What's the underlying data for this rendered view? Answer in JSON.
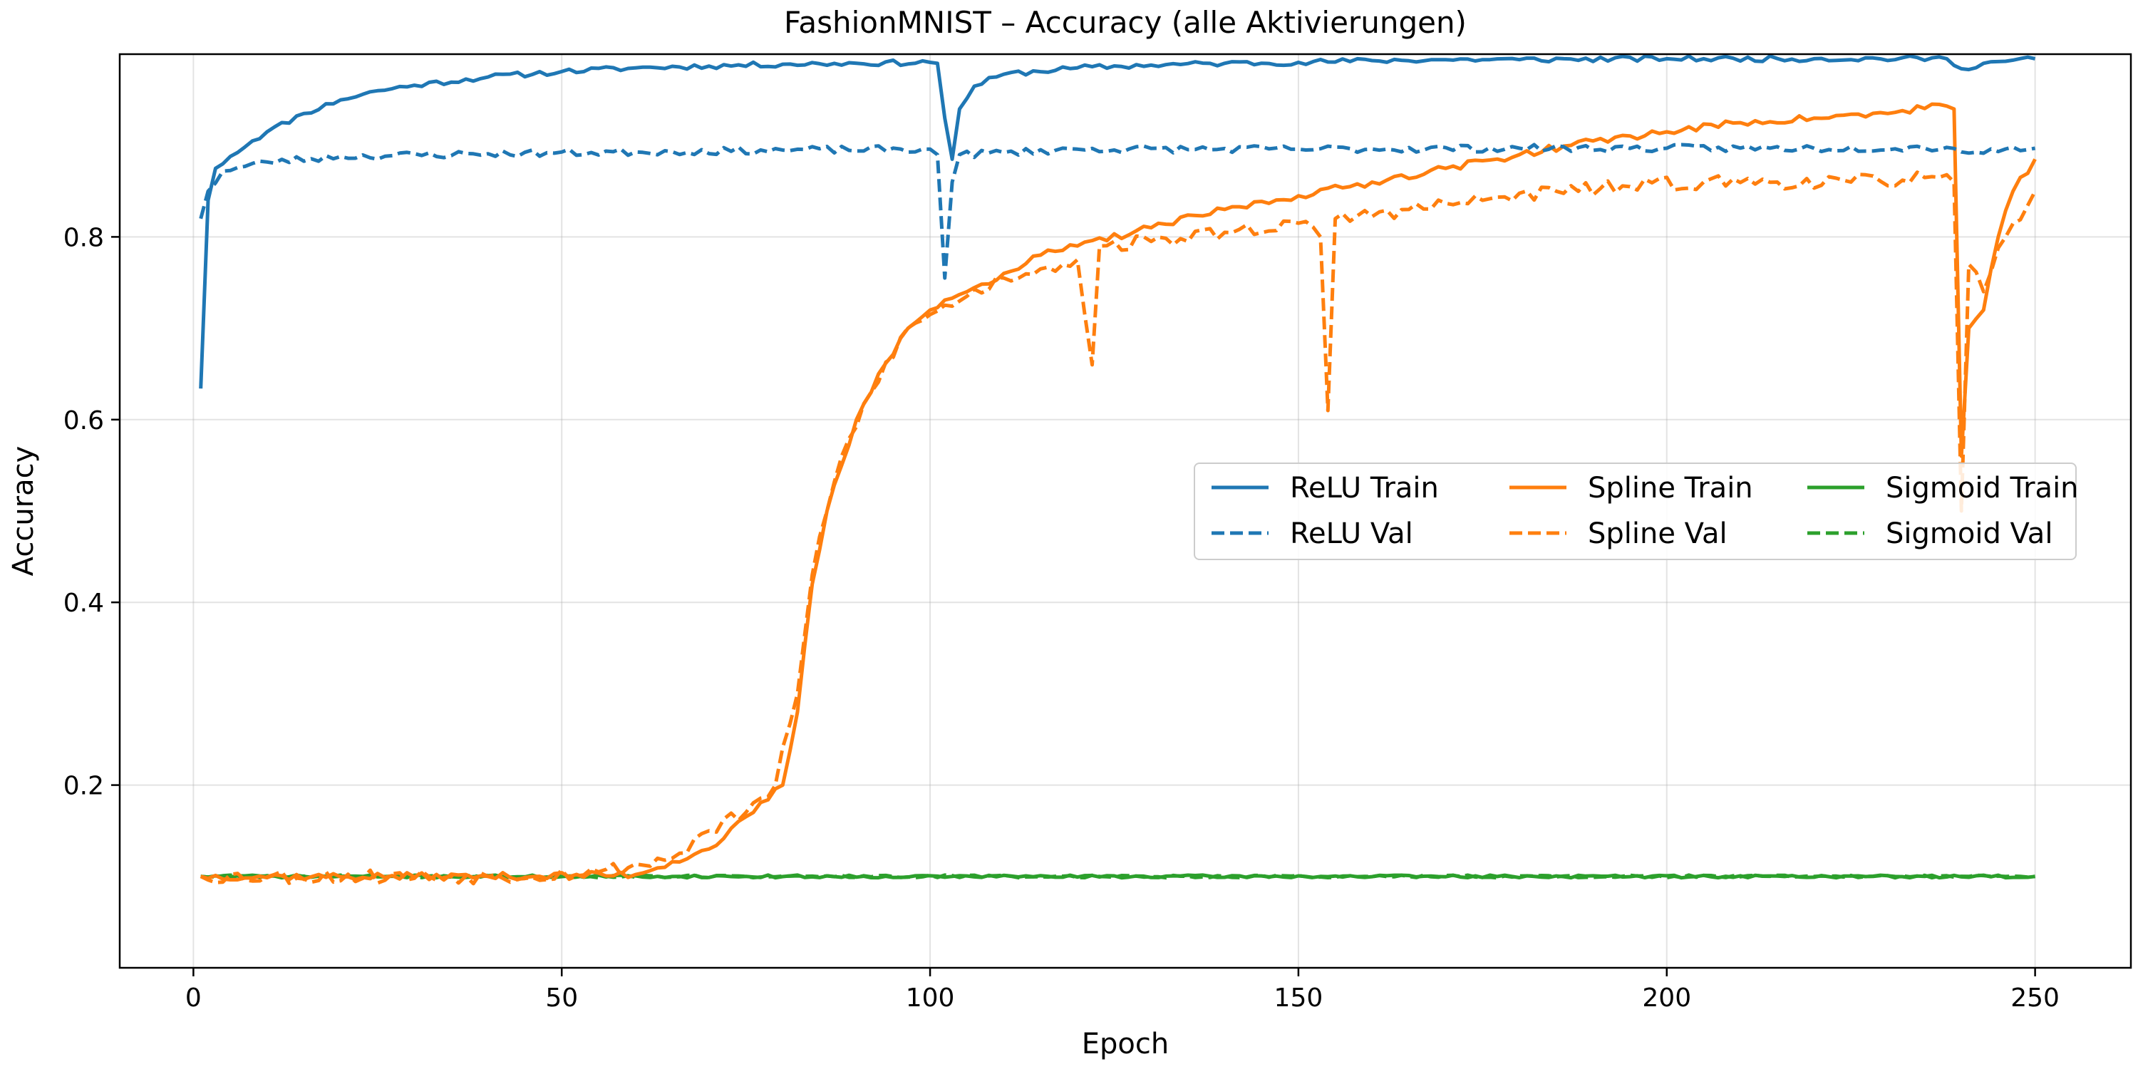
{
  "chart_data": {
    "type": "line",
    "title": "FashionMNIST – Accuracy (alle Aktivierungen)",
    "xlabel": "Epoch",
    "ylabel": "Accuracy",
    "xlim": [
      -10,
      263
    ],
    "ylim": [
      0.0,
      1.0
    ],
    "x_ticks": [
      0,
      50,
      100,
      150,
      200,
      250
    ],
    "y_ticks": [
      0.2,
      0.4,
      0.6,
      0.8
    ],
    "y_tick_labels": [
      "0.2",
      "0.4",
      "0.6",
      "0.8"
    ],
    "grid": true,
    "legend": {
      "placement": "center-right",
      "columns": 3
    },
    "series": [
      {
        "name": "ReLU Train",
        "color": "#1f77b4",
        "style": "solid",
        "keyframes": [
          [
            1,
            0.634
          ],
          [
            2,
            0.84
          ],
          [
            3,
            0.875
          ],
          [
            5,
            0.888
          ],
          [
            8,
            0.905
          ],
          [
            10,
            0.915
          ],
          [
            15,
            0.935
          ],
          [
            20,
            0.95
          ],
          [
            25,
            0.96
          ],
          [
            30,
            0.966
          ],
          [
            40,
            0.975
          ],
          [
            50,
            0.981
          ],
          [
            60,
            0.985
          ],
          [
            70,
            0.987
          ],
          [
            80,
            0.989
          ],
          [
            90,
            0.99
          ],
          [
            100,
            0.991
          ],
          [
            101,
            0.99
          ],
          [
            102,
            0.93
          ],
          [
            103,
            0.885
          ],
          [
            104,
            0.94
          ],
          [
            106,
            0.965
          ],
          [
            110,
            0.978
          ],
          [
            120,
            0.985
          ],
          [
            130,
            0.988
          ],
          [
            140,
            0.99
          ],
          [
            150,
            0.991
          ],
          [
            160,
            0.993
          ],
          [
            170,
            0.994
          ],
          [
            180,
            0.994
          ],
          [
            200,
            0.995
          ],
          [
            220,
            0.995
          ],
          [
            238,
            0.995
          ],
          [
            240,
            0.984
          ],
          [
            243,
            0.99
          ],
          [
            250,
            0.995
          ]
        ],
        "noise": 0.003,
        "seed": 11
      },
      {
        "name": "ReLU Val",
        "color": "#1f77b4",
        "style": "dashed",
        "keyframes": [
          [
            1,
            0.82
          ],
          [
            2,
            0.85
          ],
          [
            4,
            0.872
          ],
          [
            10,
            0.882
          ],
          [
            20,
            0.888
          ],
          [
            40,
            0.891
          ],
          [
            60,
            0.893
          ],
          [
            80,
            0.895
          ],
          [
            100,
            0.896
          ],
          [
            101,
            0.89
          ],
          [
            102,
            0.755
          ],
          [
            103,
            0.86
          ],
          [
            104,
            0.89
          ],
          [
            120,
            0.896
          ],
          [
            150,
            0.896
          ],
          [
            180,
            0.897
          ],
          [
            200,
            0.897
          ],
          [
            220,
            0.897
          ],
          [
            238,
            0.898
          ],
          [
            240,
            0.893
          ],
          [
            250,
            0.897
          ]
        ],
        "noise": 0.004,
        "seed": 23
      },
      {
        "name": "Spline Train",
        "color": "#ff7f0e",
        "style": "solid",
        "keyframes": [
          [
            1,
            0.1
          ],
          [
            40,
            0.1
          ],
          [
            60,
            0.102
          ],
          [
            70,
            0.13
          ],
          [
            76,
            0.17
          ],
          [
            80,
            0.2
          ],
          [
            82,
            0.28
          ],
          [
            84,
            0.42
          ],
          [
            86,
            0.5
          ],
          [
            88,
            0.55
          ],
          [
            90,
            0.6
          ],
          [
            93,
            0.65
          ],
          [
            97,
            0.7
          ],
          [
            100,
            0.72
          ],
          [
            105,
            0.74
          ],
          [
            110,
            0.76
          ],
          [
            115,
            0.78
          ],
          [
            120,
            0.79
          ],
          [
            130,
            0.81
          ],
          [
            140,
            0.83
          ],
          [
            150,
            0.845
          ],
          [
            160,
            0.86
          ],
          [
            170,
            0.875
          ],
          [
            180,
            0.89
          ],
          [
            190,
            0.905
          ],
          [
            200,
            0.915
          ],
          [
            210,
            0.925
          ],
          [
            220,
            0.93
          ],
          [
            230,
            0.935
          ],
          [
            237,
            0.945
          ],
          [
            239,
            0.94
          ],
          [
            240,
            0.56
          ],
          [
            241,
            0.7
          ],
          [
            243,
            0.72
          ],
          [
            245,
            0.8
          ],
          [
            247,
            0.85
          ],
          [
            250,
            0.885
          ]
        ],
        "noise": 0.004,
        "seed": 37
      },
      {
        "name": "Spline Val",
        "color": "#ff7f0e",
        "style": "dashed",
        "keyframes": [
          [
            1,
            0.1
          ],
          [
            40,
            0.1
          ],
          [
            55,
            0.105
          ],
          [
            65,
            0.12
          ],
          [
            70,
            0.15
          ],
          [
            75,
            0.17
          ],
          [
            79,
            0.2
          ],
          [
            82,
            0.3
          ],
          [
            84,
            0.43
          ],
          [
            86,
            0.5
          ],
          [
            88,
            0.56
          ],
          [
            92,
            0.63
          ],
          [
            96,
            0.69
          ],
          [
            100,
            0.715
          ],
          [
            105,
            0.735
          ],
          [
            110,
            0.755
          ],
          [
            115,
            0.765
          ],
          [
            120,
            0.775
          ],
          [
            122,
            0.66
          ],
          [
            123,
            0.79
          ],
          [
            130,
            0.795
          ],
          [
            140,
            0.805
          ],
          [
            150,
            0.815
          ],
          [
            153,
            0.8
          ],
          [
            154,
            0.61
          ],
          [
            155,
            0.82
          ],
          [
            165,
            0.83
          ],
          [
            175,
            0.84
          ],
          [
            185,
            0.85
          ],
          [
            195,
            0.855
          ],
          [
            205,
            0.86
          ],
          [
            215,
            0.86
          ],
          [
            225,
            0.86
          ],
          [
            235,
            0.865
          ],
          [
            239,
            0.86
          ],
          [
            240,
            0.5
          ],
          [
            241,
            0.77
          ],
          [
            243,
            0.74
          ],
          [
            246,
            0.8
          ],
          [
            250,
            0.85
          ]
        ],
        "noise": 0.008,
        "seed": 53
      },
      {
        "name": "Sigmoid Train",
        "color": "#2ca02c",
        "style": "solid",
        "keyframes": [
          [
            1,
            0.1
          ],
          [
            250,
            0.1
          ]
        ],
        "noise": 0.0015,
        "seed": 71
      },
      {
        "name": "Sigmoid Val",
        "color": "#2ca02c",
        "style": "dashed",
        "keyframes": [
          [
            1,
            0.1
          ],
          [
            250,
            0.1
          ]
        ],
        "noise": 0.0015,
        "seed": 89
      }
    ]
  }
}
